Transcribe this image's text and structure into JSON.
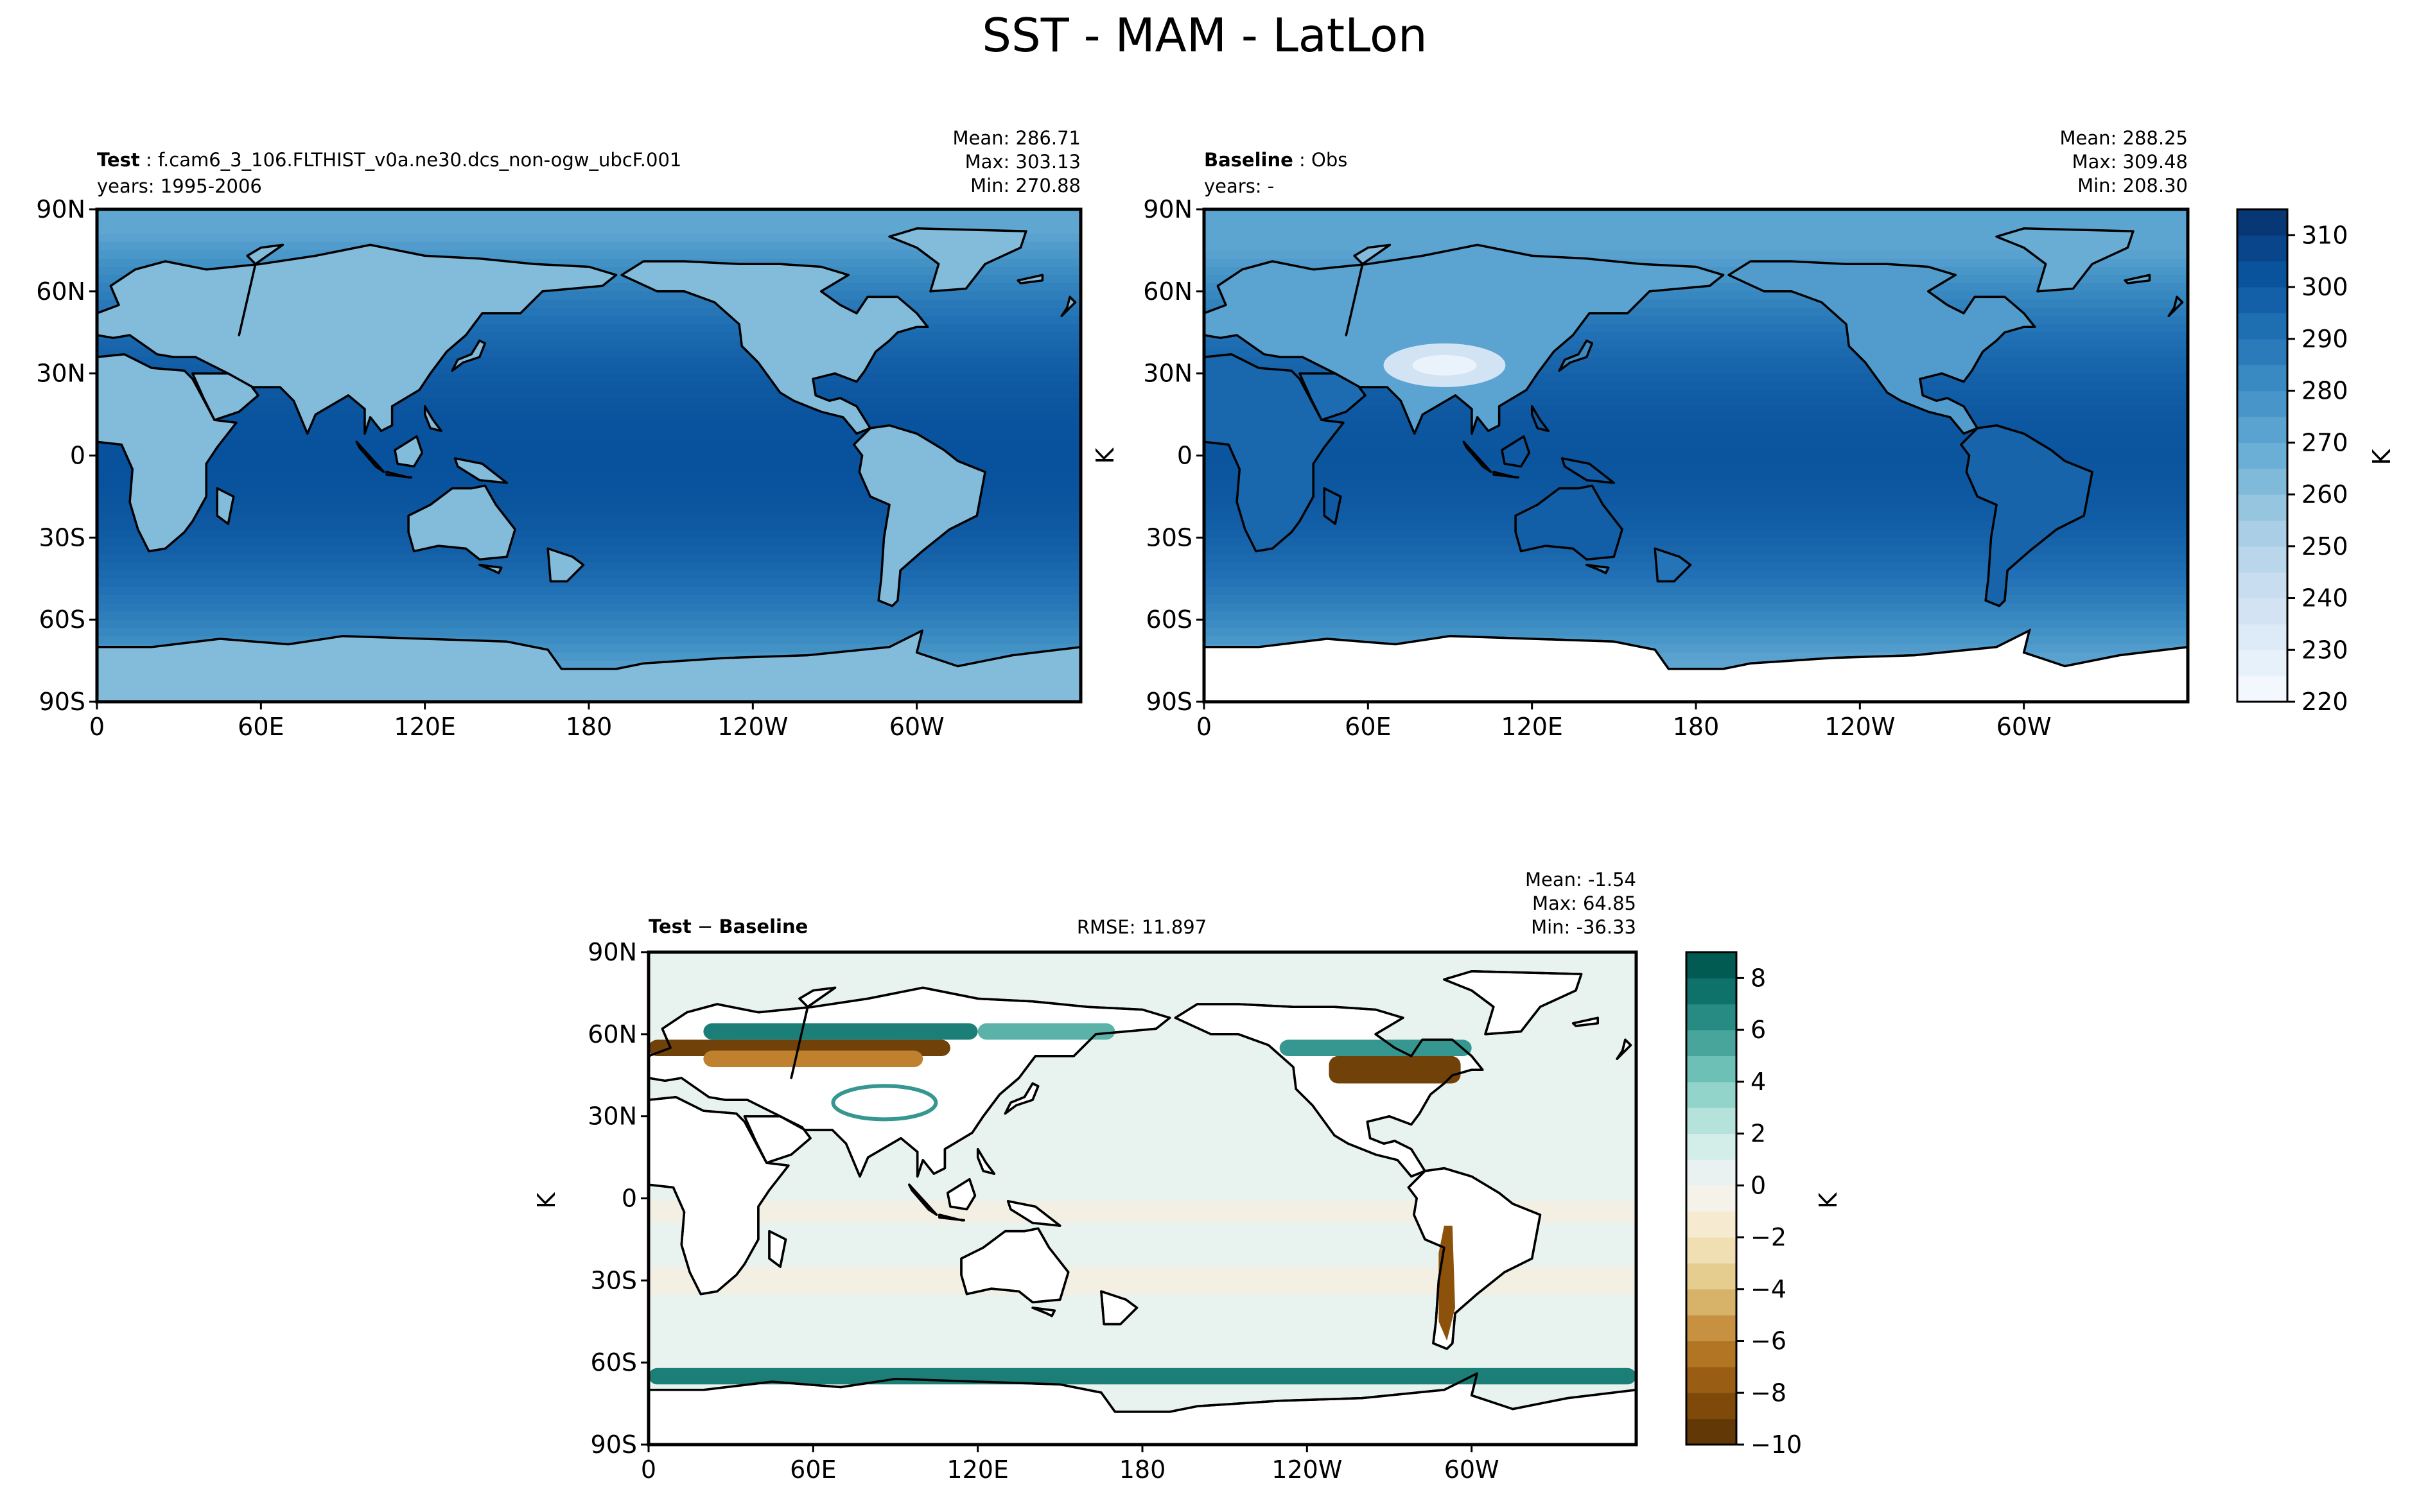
{
  "figure": {
    "title": "SST - MAM - LatLon"
  },
  "chart_data": [
    {
      "type": "heatmap",
      "name": "test",
      "label_bold": "Test",
      "label_text": "f.cam6_3_106.FLTHIST_v0a.ne30.dcs_non-ogw_ubcF.001",
      "subtitle": "years: 1995-2006",
      "stats": {
        "mean": "Mean: 286.71",
        "max": "Max: 303.13",
        "min": "Min: 270.88"
      },
      "ylabel": "",
      "x_ticks": [
        "0",
        "60E",
        "120E",
        "180",
        "120W",
        "60W"
      ],
      "y_ticks": [
        "90N",
        "60N",
        "30N",
        "0",
        "30S",
        "60S",
        "90S"
      ],
      "xlim": [
        0,
        360
      ],
      "ylim": [
        -90,
        90
      ],
      "mean_value": 286.71,
      "max_value": 303.13,
      "min_value": 270.88,
      "land_value": 262,
      "colormap": "Blues"
    },
    {
      "type": "heatmap",
      "name": "baseline",
      "label_bold": "Baseline",
      "label_text": "Obs",
      "subtitle": "years: -",
      "stats": {
        "mean": "Mean: 288.25",
        "max": "Max: 309.48",
        "min": "Min: 208.30"
      },
      "ylabel": "K",
      "x_ticks": [
        "0",
        "60E",
        "120E",
        "180",
        "120W",
        "60W"
      ],
      "y_ticks": [
        "90N",
        "60N",
        "30N",
        "0",
        "30S",
        "60S",
        "90S"
      ],
      "xlim": [
        0,
        360
      ],
      "ylim": [
        -90,
        90
      ],
      "mean_value": 288.25,
      "max_value": 309.48,
      "min_value": 208.3,
      "colormap": "Blues",
      "colorbar": {
        "ticks": [
          "220",
          "230",
          "240",
          "250",
          "260",
          "270",
          "280",
          "290",
          "300",
          "310"
        ],
        "range": [
          220,
          315
        ],
        "label": "K",
        "levels": 19
      }
    },
    {
      "type": "heatmap",
      "name": "difference",
      "label_bold_left": "Test",
      "label_sep": " − ",
      "label_bold_right": "Baseline",
      "rmse": "RMSE: 11.897",
      "stats": {
        "mean": "Mean: -1.54",
        "max": "Max: 64.85",
        "min": "Min: -36.33"
      },
      "ylabel": "K",
      "x_ticks": [
        "0",
        "60E",
        "120E",
        "180",
        "120W",
        "60W"
      ],
      "y_ticks": [
        "90N",
        "60N",
        "30N",
        "0",
        "30S",
        "60S",
        "90S"
      ],
      "xlim": [
        0,
        360
      ],
      "ylim": [
        -90,
        90
      ],
      "mean_value": -1.54,
      "max_value": 64.85,
      "min_value": -36.33,
      "colormap": "BrBG",
      "colorbar": {
        "ticks": [
          "8",
          "6",
          "4",
          "2",
          "0",
          "−2",
          "−4",
          "−6",
          "−8",
          "−10"
        ],
        "range": [
          -10,
          9
        ],
        "label": "K",
        "levels": 19
      }
    }
  ]
}
